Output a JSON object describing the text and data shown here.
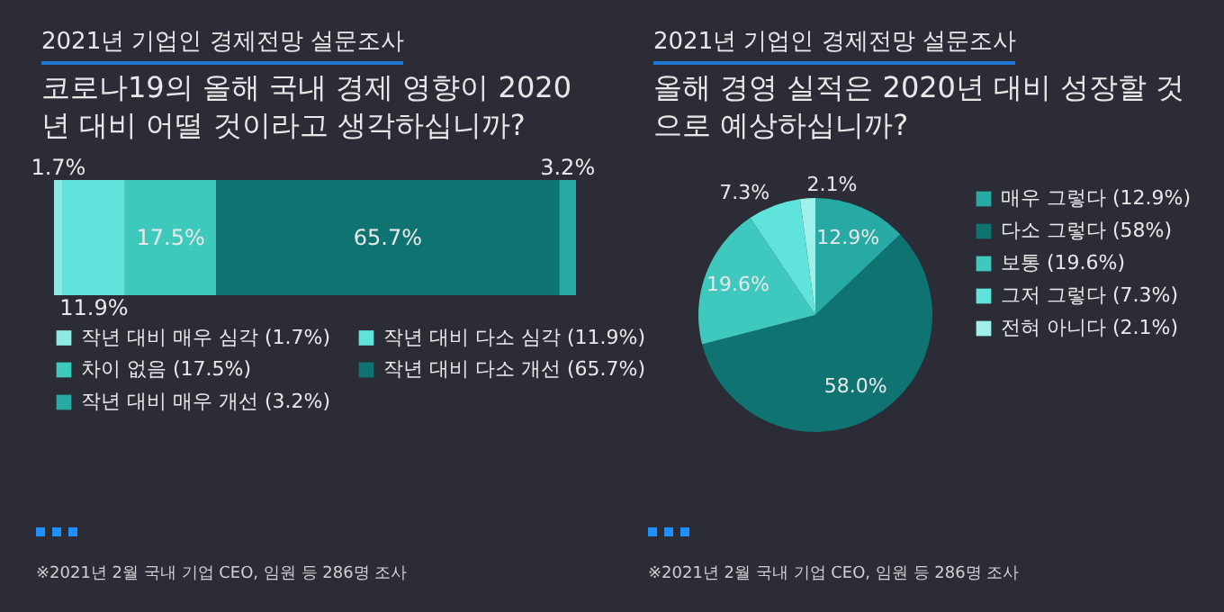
{
  "chart_data": [
    {
      "type": "bar",
      "orientation": "horizontal",
      "stacked": true,
      "title": "2021년 기업인 경제전망 설문조사",
      "subtitle": "코로나19의 올해 국내 경제 영향이 2020년 대비 어떨 것이라고 생각하십니까?",
      "categories": [
        null
      ],
      "legend": "bottom",
      "series": [
        {
          "name": "작년 대비 매우 심각 (1.7%)",
          "color": "#8ee9e1",
          "values": [
            1.7
          ],
          "value_labels": [
            "1.7%"
          ]
        },
        {
          "name": "작년 대비 다소 심각 (11.9%)",
          "color": "#5fe3da",
          "values": [
            11.9
          ],
          "value_labels": [
            "11.9%"
          ]
        },
        {
          "name": "차이 없음 (17.5%)",
          "color": "#3ec9bd",
          "values": [
            17.5
          ],
          "value_labels": [
            "17.5%"
          ]
        },
        {
          "name": "작년 대비 다소 개선 (65.7%)",
          "color": "#0f7471",
          "values": [
            65.7
          ],
          "value_labels": [
            "65.7%"
          ]
        },
        {
          "name": "작년 대비 매우 개선 (3.2%)",
          "color": "#27aaa3",
          "values": [
            3.2
          ],
          "value_labels": [
            "3.2%"
          ]
        }
      ],
      "annotations": [
        "※2021년 2월 국내 기업 CEO, 임원 등 286명 조사"
      ]
    },
    {
      "type": "pie",
      "title": "2021년 기업인 경제전망 설문조사",
      "subtitle": "올해 경영 실적은 2020년 대비 성장할 것으로 예상하십니까?",
      "legend": "right",
      "categories": [
        "매우 그렇다 (12.9%)",
        "다소 그렇다 (58%)",
        "보통 (19.6%)",
        "그저 그렇다 (7.3%)",
        "전혀 아니다 (2.1%)"
      ],
      "values": [
        12.9,
        58.0,
        19.6,
        7.3,
        2.1
      ],
      "value_labels": [
        "12.9%",
        "58.0%",
        "19.6%",
        "7.3%",
        "2.1%"
      ],
      "colors": [
        "#27aaa3",
        "#0f7471",
        "#3fc8bd",
        "#5fe3db",
        "#9ef0e8"
      ],
      "annotations": [
        "※2021년 2월 국내 기업 CEO, 임원 등 286명 조사"
      ]
    }
  ]
}
